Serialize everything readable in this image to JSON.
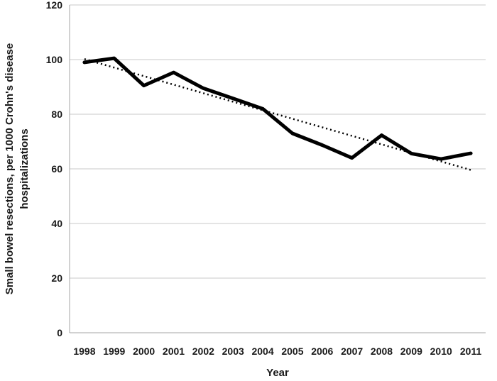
{
  "chart_data": {
    "type": "line",
    "title": "",
    "xlabel": "Year",
    "ylabel_lines": [
      "Small bowel resections, per 1000 Crohn's disease",
      "hospitalizations"
    ],
    "categories": [
      "1998",
      "1999",
      "2000",
      "2001",
      "2002",
      "2003",
      "2004",
      "2005",
      "2006",
      "2007",
      "2008",
      "2009",
      "2010",
      "2011"
    ],
    "series": [
      {
        "values": [
          99,
          100.5,
          90.5,
          95.3,
          89.5,
          85.8,
          82,
          73,
          68.7,
          64,
          72.3,
          65.6,
          63.6,
          65.7
        ],
        "style": "solid",
        "color": "#000000"
      }
    ],
    "trendline": {
      "start": 100.2,
      "end": 59.6,
      "style": "dotted",
      "color": "#000000"
    },
    "ylim": [
      0,
      120
    ],
    "yticks": [
      0,
      20,
      40,
      60,
      80,
      100,
      120
    ],
    "grid": true,
    "legend": "none"
  }
}
